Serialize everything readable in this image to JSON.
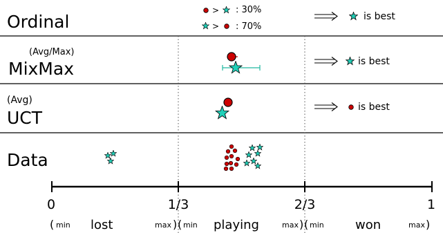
{
  "rows": {
    "ordinal": {
      "label": "Ordinal",
      "pref1_text": ": 30%",
      "pref2_text": ": 70%",
      "verdict": "is best",
      "verdict_icon": "star-icon"
    },
    "mixmax": {
      "label": "MixMax",
      "sublabel": "(Avg/Max)",
      "verdict": "is best",
      "verdict_icon": "star-icon"
    },
    "uct": {
      "label": "UCT",
      "sublabel": "(Avg)",
      "verdict": "is best",
      "verdict_icon": "circle-icon"
    },
    "data": {
      "label": "Data"
    }
  },
  "axis": {
    "ticks": [
      "0",
      "1/3",
      "2/3",
      "1"
    ],
    "regions": [
      {
        "open": "(",
        "min": "min",
        "name": "lost",
        "max": "max",
        "close": ")"
      },
      {
        "open": "(",
        "min": "min",
        "name": "playing",
        "max": "max",
        "close": ")"
      },
      {
        "open": "(",
        "min": "min",
        "name": "won",
        "max": "max",
        "close": ")"
      }
    ]
  },
  "colors": {
    "circle_fill": "#cc0000",
    "star_fill": "#20d0b8",
    "errorbar": "#20b8a0",
    "line": "#000000",
    "separator": "#000000",
    "guide": "#666666"
  }
}
